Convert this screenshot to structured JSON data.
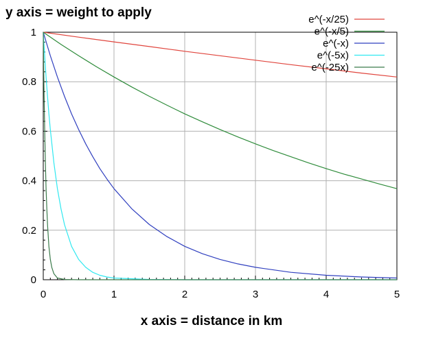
{
  "chart_data": {
    "type": "line",
    "title": "",
    "xlabel": "x axis = distance in km",
    "ylabel": "y axis = weight to apply",
    "xlim": [
      0,
      5
    ],
    "ylim": [
      0,
      1
    ],
    "xticks": [
      0,
      1,
      2,
      3,
      4,
      5
    ],
    "yticks": [
      0,
      0.2,
      0.4,
      0.6,
      0.8,
      1
    ],
    "xtick_labels": [
      "0",
      "1",
      "2",
      "3",
      "4",
      "5"
    ],
    "ytick_labels": [
      "0",
      "0.2",
      "0.4",
      "0.6",
      "0.8",
      "1"
    ],
    "grid": true,
    "legend_position": "top-right",
    "series": [
      {
        "name": "e^(-x/25)",
        "color": "#e0443c",
        "x": [
          0,
          0.5,
          1,
          1.5,
          2,
          2.5,
          3,
          3.5,
          4,
          4.5,
          5
        ],
        "y": [
          1,
          0.98,
          0.961,
          0.942,
          0.923,
          0.905,
          0.887,
          0.869,
          0.852,
          0.835,
          0.819
        ]
      },
      {
        "name": "e^(-x/5)",
        "color": "#2e8b3a",
        "x": [
          0,
          0.25,
          0.5,
          0.75,
          1,
          1.25,
          1.5,
          1.75,
          2,
          2.25,
          2.5,
          2.75,
          3,
          3.25,
          3.5,
          3.75,
          4,
          4.25,
          4.5,
          4.75,
          5
        ],
        "y": [
          1,
          0.951,
          0.905,
          0.861,
          0.819,
          0.779,
          0.741,
          0.705,
          0.67,
          0.638,
          0.607,
          0.577,
          0.549,
          0.522,
          0.497,
          0.472,
          0.449,
          0.427,
          0.407,
          0.387,
          0.368
        ]
      },
      {
        "name": "e^(-x)",
        "color": "#2f3fbf",
        "x": [
          0,
          0.1,
          0.2,
          0.3,
          0.4,
          0.5,
          0.6,
          0.7,
          0.8,
          0.9,
          1,
          1.25,
          1.5,
          1.75,
          2,
          2.25,
          2.5,
          2.75,
          3,
          3.5,
          4,
          4.5,
          5
        ],
        "y": [
          1,
          0.905,
          0.819,
          0.741,
          0.67,
          0.607,
          0.549,
          0.497,
          0.449,
          0.407,
          0.368,
          0.287,
          0.223,
          0.174,
          0.135,
          0.105,
          0.082,
          0.064,
          0.05,
          0.03,
          0.018,
          0.011,
          0.007
        ]
      },
      {
        "name": "e^(-5x)",
        "color": "#2fe8f0",
        "x": [
          0,
          0.02,
          0.04,
          0.06,
          0.08,
          0.1,
          0.15,
          0.2,
          0.25,
          0.3,
          0.4,
          0.5,
          0.6,
          0.7,
          0.8,
          0.9,
          1,
          1.5,
          2,
          3,
          4,
          5
        ],
        "y": [
          1,
          0.905,
          0.819,
          0.741,
          0.67,
          0.607,
          0.472,
          0.368,
          0.287,
          0.223,
          0.135,
          0.082,
          0.05,
          0.03,
          0.018,
          0.011,
          0.007,
          0.001,
          0,
          0,
          0,
          0
        ]
      },
      {
        "name": "e^(-25x)",
        "color": "#3a7a4a",
        "x": [
          0,
          0.01,
          0.02,
          0.03,
          0.04,
          0.05,
          0.06,
          0.08,
          0.1,
          0.12,
          0.15,
          0.2,
          0.3,
          0.5,
          1,
          2,
          3,
          4,
          5
        ],
        "y": [
          1,
          0.779,
          0.607,
          0.472,
          0.368,
          0.287,
          0.223,
          0.135,
          0.082,
          0.05,
          0.024,
          0.007,
          0.001,
          0,
          0,
          0,
          0,
          0,
          0
        ]
      }
    ]
  }
}
